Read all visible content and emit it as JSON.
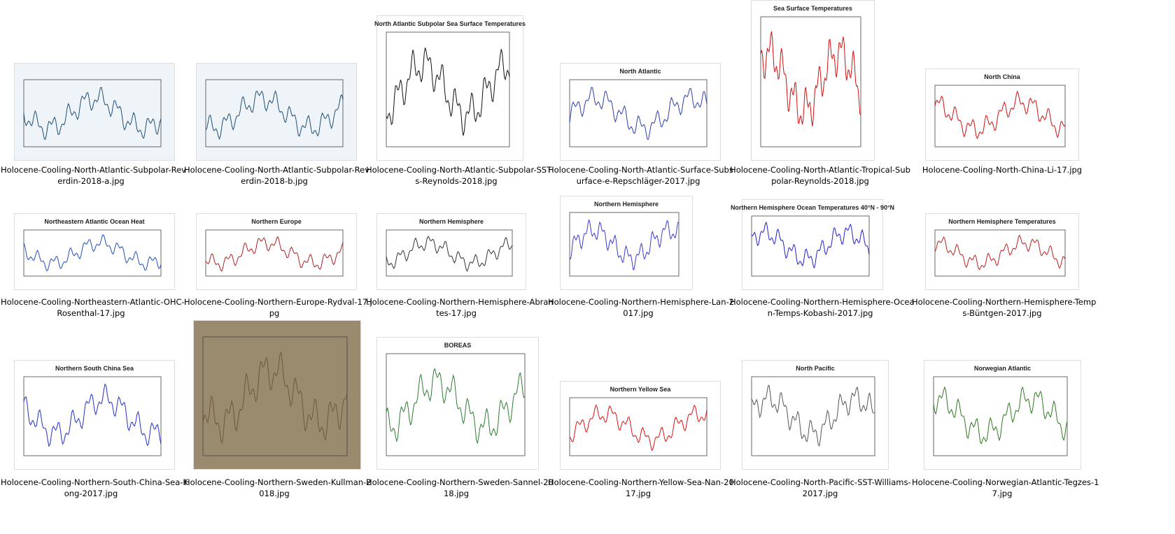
{
  "files": [
    {
      "name_lines": [
        "Holocene-Cooling-North-Atlantic-Subpolar-Rev",
        "erdin-2018-a.jpg"
      ]
    },
    {
      "name_lines": [
        "Holocene-Cooling-North-Atlantic-Subpolar-Rev",
        "erdin-2018-b.jpg"
      ]
    },
    {
      "name_lines": [
        "Holocene-Cooling-North-Atlantic-Subpolar-SST",
        "s-Reynolds-2018.jpg"
      ],
      "thumb_title": "North Atlantic Subpolar Sea Surface Temperatures"
    },
    {
      "name_lines": [
        "Holocene-Cooling-North-Atlantic-Surface-Subs",
        "urface-e-Repschläger-2017.jpg"
      ],
      "thumb_title": "North Atlantic"
    },
    {
      "name_lines": [
        "Holocene-Cooling-North-Atlantic-Tropical-Sub",
        "polar-Reynolds-2018.jpg"
      ],
      "thumb_title": "Sea Surface Temperatures"
    },
    {
      "name_lines": [
        "Holocene-Cooling-North-China-Li-17.jpg"
      ],
      "thumb_title": "North China"
    },
    {
      "name_lines": [
        "Holocene-Cooling-Northeastern-Atlantic-OHC-",
        "Rosenthal-17.jpg"
      ],
      "thumb_title": "Northeastern Atlantic Ocean Heat"
    },
    {
      "name_lines": [
        "Holocene-Cooling-Northern-Europe-Rydval-17.j",
        "pg"
      ],
      "thumb_title": "Northern Europe"
    },
    {
      "name_lines": [
        "Holocene-Cooling-Northern-Hemisphere-Abran",
        "tes-17.jpg"
      ],
      "thumb_title": "Northern Hemisphere"
    },
    {
      "name_lines": [
        "Holocene-Cooling-Northern-Hemisphere-Lan-2",
        "017.jpg"
      ],
      "thumb_title": "Northern Hemisphere"
    },
    {
      "name_lines": [
        "Holocene-Cooling-Northern-Hemisphere-Ocea",
        "n-Temps-Kobashi-2017.jpg"
      ],
      "thumb_title": "Northern Hemisphere Ocean Temperatures 40°N - 90°N"
    },
    {
      "name_lines": [
        "Holocene-Cooling-Northern-Hemisphere-Temp",
        "s-Büntgen-2017.jpg"
      ],
      "thumb_title": "Northern Hemisphere Temperatures"
    },
    {
      "name_lines": [
        "Holocene-Cooling-Northern-South-China-Sea-K",
        "ong-2017.jpg"
      ],
      "thumb_title": "Northern South China Sea"
    },
    {
      "name_lines": [
        "Holocene-Cooling-Northern-Sweden-Kullman-2",
        "018.jpg"
      ]
    },
    {
      "name_lines": [
        "Holocene-Cooling-Northern-Sweden-Sannel-20",
        "18.jpg"
      ],
      "thumb_title": "BOREAS"
    },
    {
      "name_lines": [
        "Holocene-Cooling-Northern-Yellow-Sea-Nan-20",
        "17.jpg"
      ],
      "thumb_title": "Northern Yellow Sea"
    },
    {
      "name_lines": [
        "Holocene-Cooling-North-Pacific-SST-Williams-",
        "2017.jpg"
      ],
      "thumb_title": "North Pacific"
    },
    {
      "name_lines": [
        "Holocene-Cooling-Norwegian-Atlantic-Tegzes-1",
        "7.jpg"
      ],
      "thumb_title": "Norwegian Atlantic"
    }
  ]
}
